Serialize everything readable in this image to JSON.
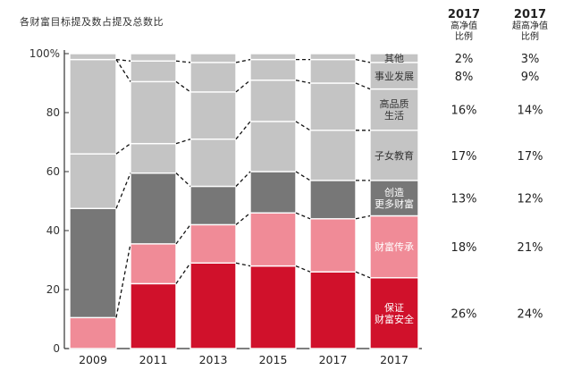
{
  "chart_data": {
    "type": "bar",
    "stacked": true,
    "title": "各财富目标提及数占提及总数比",
    "categories": [
      "2009",
      "2011",
      "2013",
      "2015",
      "2017",
      "2017"
    ],
    "ylim": [
      0,
      100
    ],
    "yticks": [
      0,
      20,
      40,
      60,
      80,
      100
    ],
    "ytick_labels": [
      "0",
      "20",
      "40",
      "60",
      "80",
      "100%"
    ],
    "grid": false,
    "series": [
      {
        "name": "保证财富安全",
        "color": "#d0112b",
        "values": [
          0,
          22,
          29,
          28,
          26,
          24
        ]
      },
      {
        "name": "财富传承",
        "color": "#f08b97",
        "values": [
          10.5,
          13.5,
          13,
          18,
          18,
          21
        ]
      },
      {
        "name": "创造更多财富",
        "color": "#777777",
        "values": [
          37,
          24,
          13,
          14,
          13,
          12
        ]
      },
      {
        "name": "子女教育",
        "color": "#c4c4c4",
        "values": [
          18.5,
          10,
          16,
          17,
          17,
          17
        ]
      },
      {
        "name": "高品质生活",
        "color": "#c4c4c4",
        "values": [
          32,
          21,
          16,
          14,
          16,
          14
        ]
      },
      {
        "name": "事业发展",
        "color": "#c4c4c4",
        "values": [
          0,
          7,
          10,
          7,
          8,
          9
        ]
      },
      {
        "name": "其他",
        "color": "#c4c4c4",
        "values": [
          2,
          2.5,
          3,
          2,
          2,
          3
        ]
      }
    ],
    "segment_labels": [
      "保证\n财富安全",
      "财富传承",
      "创造\n更多财富",
      "子女教育",
      "高品质\n生活",
      "事业发展",
      "其他"
    ],
    "table": {
      "col1_year": "2017",
      "col1_sub": "高净值\n比例",
      "col2_year": "2017",
      "col2_sub": "超高净值\n比例",
      "col1": [
        "26%",
        "18%",
        "13%",
        "17%",
        "16%",
        "8%",
        "2%"
      ],
      "col2": [
        "24%",
        "21%",
        "12%",
        "17%",
        "14%",
        "9%",
        "3%"
      ]
    }
  }
}
